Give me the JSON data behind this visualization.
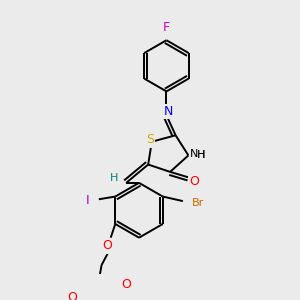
{
  "background_color": "#ebebeb",
  "bond_color": "#000000",
  "atom_colors": {
    "F": "#cc00cc",
    "N": "#0000ff",
    "S": "#ccaa00",
    "O": "#ff0000",
    "Br": "#cc6600",
    "I": "#9900cc",
    "H": "#008080",
    "C": "#000000"
  },
  "figsize": [
    3.0,
    3.0
  ],
  "dpi": 100
}
